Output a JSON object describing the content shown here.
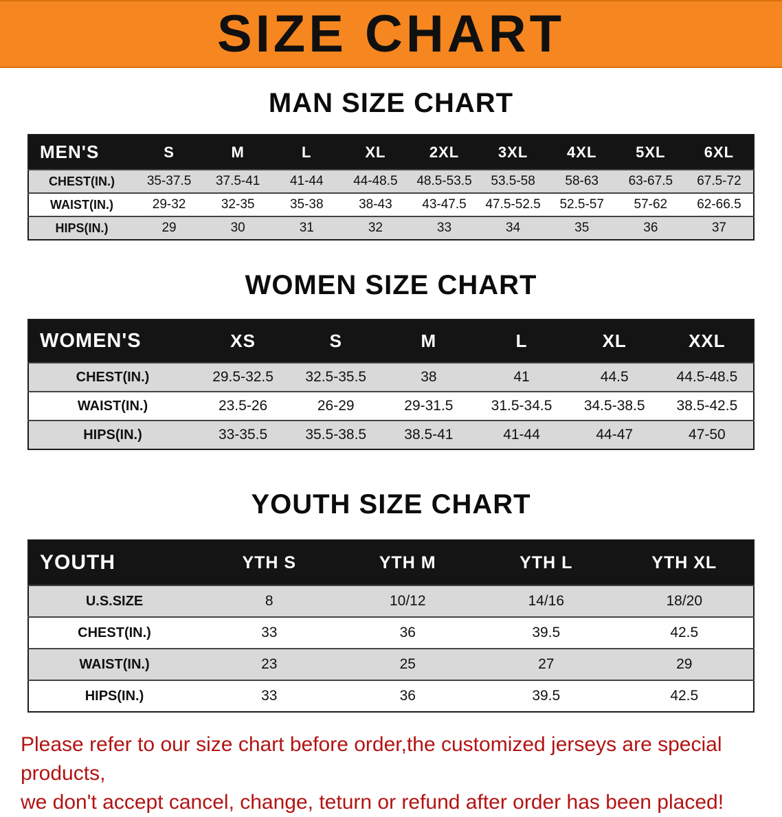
{
  "banner": {
    "title": "SIZE CHART"
  },
  "chart_data": [
    {
      "type": "table",
      "title": "MAN SIZE CHART",
      "corner": "MEN'S",
      "columns": [
        "S",
        "M",
        "L",
        "XL",
        "2XL",
        "3XL",
        "4XL",
        "5XL",
        "6XL"
      ],
      "rows": [
        {
          "label": "CHEST(IN.)",
          "values": [
            "35-37.5",
            "37.5-41",
            "41-44",
            "44-48.5",
            "48.5-53.5",
            "53.5-58",
            "58-63",
            "63-67.5",
            "67.5-72"
          ]
        },
        {
          "label": "WAIST(IN.)",
          "values": [
            "29-32",
            "32-35",
            "35-38",
            "38-43",
            "43-47.5",
            "47.5-52.5",
            "52.5-57",
            "57-62",
            "62-66.5"
          ]
        },
        {
          "label": "HIPS(IN.)",
          "values": [
            "29",
            "30",
            "31",
            "32",
            "33",
            "34",
            "35",
            "36",
            "37"
          ]
        }
      ]
    },
    {
      "type": "table",
      "title": "WOMEN SIZE CHART",
      "corner": "WOMEN'S",
      "columns": [
        "XS",
        "S",
        "M",
        "L",
        "XL",
        "XXL"
      ],
      "rows": [
        {
          "label": "CHEST(IN.)",
          "values": [
            "29.5-32.5",
            "32.5-35.5",
            "38",
            "41",
            "44.5",
            "44.5-48.5"
          ]
        },
        {
          "label": "WAIST(IN.)",
          "values": [
            "23.5-26",
            "26-29",
            "29-31.5",
            "31.5-34.5",
            "34.5-38.5",
            "38.5-42.5"
          ]
        },
        {
          "label": "HIPS(IN.)",
          "values": [
            "33-35.5",
            "35.5-38.5",
            "38.5-41",
            "41-44",
            "44-47",
            "47-50"
          ]
        }
      ]
    },
    {
      "type": "table",
      "title": "YOUTH SIZE CHART",
      "corner": "YOUTH",
      "columns": [
        "YTH S",
        "YTH M",
        "YTH L",
        "YTH XL"
      ],
      "rows": [
        {
          "label": "U.S.SIZE",
          "values": [
            "8",
            "10/12",
            "14/16",
            "18/20"
          ]
        },
        {
          "label": "CHEST(IN.)",
          "values": [
            "33",
            "36",
            "39.5",
            "42.5"
          ]
        },
        {
          "label": "WAIST(IN.)",
          "values": [
            "23",
            "25",
            "27",
            "29"
          ]
        },
        {
          "label": "HIPS(IN.)",
          "values": [
            "33",
            "36",
            "39.5",
            "42.5"
          ]
        }
      ]
    }
  ],
  "footer": {
    "line1": "Please refer to our size chart before order,the customized jerseys are special products,",
    "line2": "we don't accept cancel, change, teturn or refund after order has been placed!"
  },
  "colors": {
    "banner_orange": "#f6861f",
    "header_black": "#141414",
    "row_gray": "#d9d9d9",
    "footer_red": "#b31313"
  }
}
